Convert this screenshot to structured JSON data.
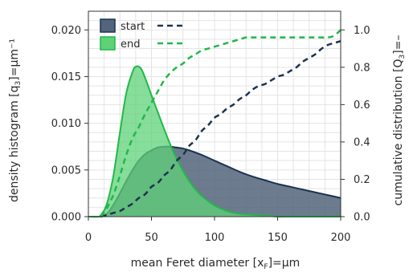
{
  "chart_data": {
    "type": "area",
    "xlabel": "mean Feret diameter [x",
    "xlabel_sub": "F",
    "xlabel_suffix": "]=µm",
    "ylabel_left": "density histogram [q",
    "ylabel_left_sub": "3",
    "ylabel_left_suffix": "]=µm⁻¹",
    "ylabel_right": "cumulative distribution [Q",
    "ylabel_right_sub": "3",
    "ylabel_right_suffix": "]=–",
    "xlim": [
      0,
      200
    ],
    "ylim_left": [
      0,
      0.022
    ],
    "ylim_right": [
      0,
      1.1
    ],
    "x_ticks": [
      "0",
      "50",
      "100",
      "150",
      "200"
    ],
    "y_ticks_left": [
      "0.000",
      "0.005",
      "0.010",
      "0.015",
      "0.020"
    ],
    "y_ticks_right": [
      "0.0",
      "0.2",
      "0.4",
      "0.6",
      "0.8",
      "1.0"
    ],
    "grid": true,
    "legend_position": "top-left",
    "series": [
      {
        "name": "start",
        "color": "#1c3350",
        "fill": "#52657a",
        "density": {
          "x": [
            0,
            8,
            12,
            16,
            20,
            25,
            30,
            35,
            40,
            45,
            50,
            55,
            60,
            65,
            70,
            75,
            80,
            90,
            100,
            110,
            120,
            130,
            140,
            150,
            160,
            170,
            180,
            190,
            200
          ],
          "y": [
            0,
            0,
            0.0001,
            0.0005,
            0.0013,
            0.0025,
            0.0038,
            0.005,
            0.006,
            0.0067,
            0.0071,
            0.0074,
            0.0075,
            0.0075,
            0.0074,
            0.0073,
            0.0071,
            0.0066,
            0.006,
            0.0054,
            0.0048,
            0.0043,
            0.0039,
            0.0035,
            0.0032,
            0.0029,
            0.0026,
            0.0023,
            0.002
          ]
        },
        "cumulative": {
          "x": [
            10,
            15,
            20,
            25,
            30,
            35,
            40,
            45,
            50,
            55,
            60,
            65,
            70,
            75,
            80,
            85,
            90,
            95,
            100,
            105,
            110,
            115,
            120,
            125,
            130,
            135,
            140,
            145,
            150,
            155,
            160,
            165,
            170,
            175,
            180,
            185,
            190,
            195,
            200
          ],
          "y": [
            0,
            0.01,
            0.02,
            0.03,
            0.05,
            0.07,
            0.1,
            0.12,
            0.16,
            0.18,
            0.22,
            0.25,
            0.3,
            0.33,
            0.38,
            0.41,
            0.46,
            0.49,
            0.53,
            0.55,
            0.58,
            0.6,
            0.63,
            0.65,
            0.68,
            0.7,
            0.71,
            0.73,
            0.75,
            0.76,
            0.78,
            0.8,
            0.83,
            0.85,
            0.87,
            0.9,
            0.92,
            0.93,
            0.94
          ]
        }
      },
      {
        "name": "end",
        "color": "#21b84a",
        "fill": "#5fd178",
        "density": {
          "x": [
            0,
            8,
            10,
            13,
            16,
            20,
            25,
            30,
            35,
            38,
            42,
            46,
            50,
            55,
            60,
            65,
            70,
            75,
            80,
            85,
            90,
            100,
            110,
            120,
            130,
            140,
            150,
            160,
            170,
            180,
            190,
            200
          ],
          "y": [
            0,
            0,
            0.0002,
            0.0008,
            0.002,
            0.0045,
            0.009,
            0.0132,
            0.0155,
            0.0161,
            0.0158,
            0.0145,
            0.013,
            0.0112,
            0.0094,
            0.0077,
            0.0062,
            0.0049,
            0.0038,
            0.0029,
            0.0022,
            0.0012,
            0.0006,
            0.0003,
            0.0002,
            0.0001,
            0,
            0,
            0,
            0,
            0,
            0
          ]
        },
        "cumulative": {
          "x": [
            10,
            15,
            20,
            25,
            30,
            35,
            40,
            45,
            50,
            55,
            60,
            65,
            70,
            75,
            80,
            85,
            90,
            95,
            100,
            105,
            110,
            115,
            120,
            125,
            130,
            140,
            150,
            160,
            170,
            180,
            190,
            195,
            200
          ],
          "y": [
            0,
            0.05,
            0.12,
            0.22,
            0.33,
            0.42,
            0.48,
            0.55,
            0.61,
            0.67,
            0.73,
            0.77,
            0.8,
            0.82,
            0.85,
            0.87,
            0.89,
            0.9,
            0.91,
            0.92,
            0.93,
            0.94,
            0.95,
            0.96,
            0.96,
            0.96,
            0.96,
            0.96,
            0.96,
            0.96,
            0.96,
            0.97,
            1.0
          ]
        }
      }
    ]
  }
}
